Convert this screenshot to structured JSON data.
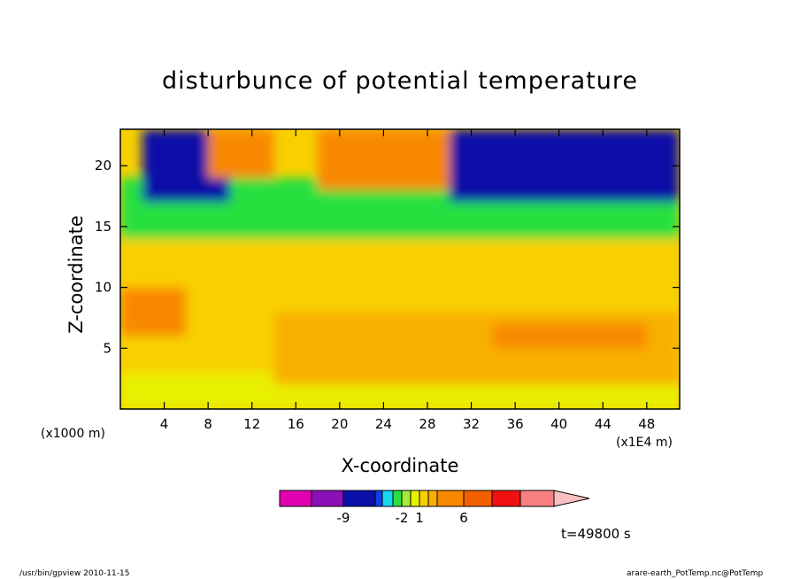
{
  "chart_data": {
    "type": "heatmap",
    "title": "disturbunce of potential temperature",
    "xlabel": "X-coordinate",
    "ylabel": "Z-coordinate",
    "x_unit_note": "(x1000 m)",
    "x_scale_note": "(x1E4 m)",
    "time_label": "t=49800 s",
    "xlim": [
      0,
      51
    ],
    "ylim": [
      0,
      23
    ],
    "x_ticks": [
      4,
      8,
      12,
      16,
      20,
      24,
      28,
      32,
      36,
      40,
      44,
      48
    ],
    "y_ticks": [
      5,
      10,
      15,
      20
    ],
    "colorbar": {
      "colors": [
        "#e000b0",
        "#8a10b8",
        "#0a10a8",
        "#1040e8",
        "#18d8f0",
        "#28e040",
        "#a8e838",
        "#e8f000",
        "#f8d000",
        "#f8b000",
        "#f88800",
        "#f06000",
        "#f01010",
        "#f88080",
        "#f8c0c0"
      ],
      "tick_labels": [
        "-9",
        "-2",
        "1",
        "6"
      ],
      "tick_positions": [
        2,
        6,
        8,
        11
      ]
    },
    "regions": [
      {
        "level": "near-zero-positive",
        "x": [
          0,
          51
        ],
        "z": [
          0,
          3
        ],
        "color": "#e8f000"
      },
      {
        "level": "positive-low",
        "x": [
          0,
          51
        ],
        "z": [
          3,
          14
        ],
        "color": "#f8d000"
      },
      {
        "level": "positive-mid",
        "x": [
          14,
          51
        ],
        "z": [
          2,
          8
        ],
        "color": "#f8b000"
      },
      {
        "level": "positive-high",
        "x": [
          34,
          48
        ],
        "z": [
          5,
          7
        ],
        "color": "#f88800"
      },
      {
        "level": "positive-high",
        "x": [
          0,
          6
        ],
        "z": [
          6,
          10
        ],
        "color": "#f88800"
      },
      {
        "level": "negative-low",
        "x": [
          0,
          51
        ],
        "z": [
          14,
          19
        ],
        "color": "#28e040"
      },
      {
        "level": "negative-high",
        "x": [
          30,
          51
        ],
        "z": [
          17,
          23
        ],
        "color": "#0a10a8"
      },
      {
        "level": "negative-high",
        "x": [
          2,
          10
        ],
        "z": [
          17,
          23
        ],
        "color": "#0a10a8"
      },
      {
        "level": "positive-upper",
        "x": [
          18,
          30
        ],
        "z": [
          18,
          23
        ],
        "color": "#f88800"
      },
      {
        "level": "positive-upper",
        "x": [
          8,
          14
        ],
        "z": [
          19,
          23
        ],
        "color": "#f88800"
      }
    ]
  },
  "footer": {
    "left": "/usr/bin/gpview   2010-11-15",
    "right": "arare-earth_PotTemp.nc@PotTemp"
  }
}
